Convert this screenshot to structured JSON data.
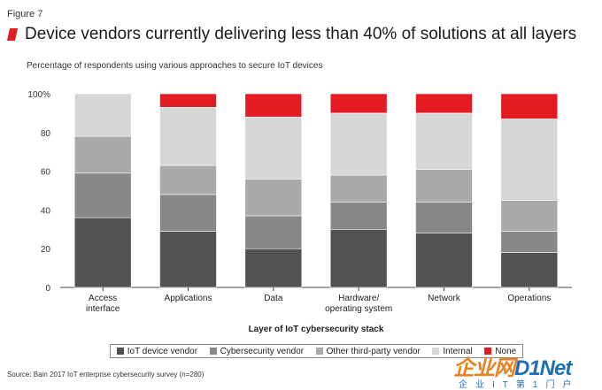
{
  "figure_label": "Figure 7",
  "title": "Device vendors currently delivering less than 40% of solutions at all layers",
  "subtitle": "Percentage of respondents using various approaches to secure IoT devices",
  "source": "Source: Bain 2017 IoT enterprise cybersecurity survey (n=280)",
  "watermark": {
    "main_prefix": "企业网",
    "main_suffix": "D1Net",
    "sub": "企业IT第1门户"
  },
  "colors": {
    "accent": "#e31b23"
  },
  "chart_data": {
    "type": "bar",
    "stacked": true,
    "categories": [
      "Access\ninterface",
      "Applications",
      "Data",
      "Hardware/\noperating system",
      "Network",
      "Operations"
    ],
    "series": [
      {
        "name": "IoT device vendor",
        "color": "#525252",
        "values": [
          36,
          29,
          20,
          30,
          28,
          18
        ]
      },
      {
        "name": "Cybersecurity vendor",
        "color": "#878787",
        "values": [
          23,
          19,
          17,
          14,
          16,
          11
        ]
      },
      {
        "name": "Other third-party vendor",
        "color": "#a9a9a9",
        "values": [
          19,
          15,
          19,
          14,
          17,
          16
        ]
      },
      {
        "name": "Internal",
        "color": "#d6d6d6",
        "values": [
          22,
          30,
          32,
          32,
          29,
          42
        ]
      },
      {
        "name": "None",
        "color": "#e31b23",
        "values": [
          0,
          7,
          12,
          10,
          10,
          13
        ]
      }
    ],
    "yticks": [
      "0",
      "20",
      "40",
      "60",
      "80",
      "100%"
    ],
    "ylim": [
      0,
      100
    ],
    "xlabel": "Layer of IoT cybersecurity stack",
    "ylabel": "",
    "legend_position": "bottom"
  }
}
